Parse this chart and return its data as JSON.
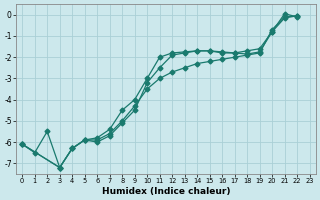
{
  "xlabel": "Humidex (Indice chaleur)",
  "bg_color": "#cce8ec",
  "grid_color": "#aad0d6",
  "line_color": "#1a7a6e",
  "xlim": [
    -0.5,
    23.5
  ],
  "ylim": [
    -7.5,
    0.5
  ],
  "xticks": [
    0,
    1,
    2,
    3,
    4,
    5,
    6,
    7,
    8,
    9,
    10,
    11,
    12,
    13,
    14,
    15,
    16,
    17,
    18,
    19,
    20,
    21,
    22,
    23
  ],
  "yticks": [
    0,
    -1,
    -2,
    -3,
    -4,
    -5,
    -6,
    -7
  ],
  "line1_x": [
    0,
    1,
    2,
    3,
    4,
    5,
    6,
    7,
    8,
    9,
    10,
    11,
    12,
    13,
    14,
    15,
    16,
    17,
    18,
    19,
    20,
    21,
    22
  ],
  "line1_y": [
    -6.1,
    -6.5,
    -5.5,
    -7.2,
    -6.3,
    -5.9,
    -6.0,
    -5.7,
    -5.1,
    -4.5,
    -3.2,
    -2.5,
    -1.9,
    -1.8,
    -1.7,
    -1.7,
    -1.8,
    -1.8,
    -1.7,
    -1.6,
    -0.8,
    -0.15,
    -0.05
  ],
  "line2_x": [
    0,
    3,
    4,
    5,
    6,
    7,
    8,
    9,
    10,
    11,
    12,
    13,
    14,
    15,
    16,
    17,
    18,
    19,
    20,
    21,
    22
  ],
  "line2_y": [
    -6.1,
    -7.2,
    -6.3,
    -5.9,
    -5.9,
    -5.6,
    -5.0,
    -4.3,
    -3.5,
    -3.0,
    -2.7,
    -2.5,
    -2.3,
    -2.2,
    -2.1,
    -2.0,
    -1.9,
    -1.8,
    -0.7,
    -0.1,
    -0.05
  ],
  "line3_x": [
    0,
    3,
    4,
    5,
    6,
    7,
    8,
    9,
    10,
    11,
    12,
    13,
    14,
    15,
    16,
    17,
    18,
    19,
    20,
    21,
    22
  ],
  "line3_y": [
    -6.1,
    -7.2,
    -6.3,
    -5.9,
    -5.8,
    -5.4,
    -4.5,
    -4.0,
    -3.0,
    -2.0,
    -1.8,
    -1.75,
    -1.7,
    -1.7,
    -1.75,
    -1.8,
    -1.85,
    -1.75,
    -0.8,
    0.05,
    -0.1
  ]
}
